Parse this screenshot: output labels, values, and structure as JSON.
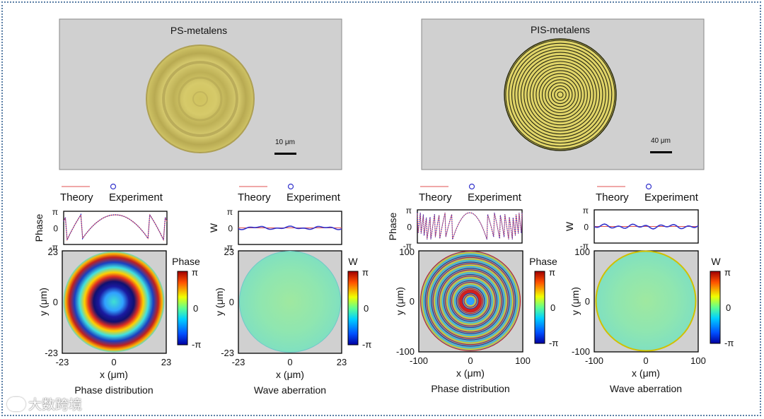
{
  "micrographs": [
    {
      "title": "PS-metalens",
      "scale_label": "10 μm"
    },
    {
      "title": "PIS-metalens",
      "scale_label": "40 μm"
    }
  ],
  "legend": {
    "theory": "Theory",
    "experiment": "Experiment"
  },
  "colors": {
    "theory": "#e05050",
    "experiment": "#3333cc",
    "background": "#d0d0d0",
    "lens": "#d8cc66"
  },
  "panels": [
    {
      "line_ylabel": "Phase",
      "line_ticks": [
        "π",
        "0",
        "-π"
      ],
      "map_ticks_y": [
        "23",
        "0",
        "-23"
      ],
      "map_ticks_x": [
        "-23",
        "0",
        "23"
      ],
      "colorbar_title": "Phase",
      "colorbar_ticks": [
        "π",
        "0",
        "-π"
      ],
      "x_label": "x (μm)",
      "y_label": "y (μm)",
      "caption": "Phase distribution"
    },
    {
      "line_ylabel": "W",
      "line_ticks": [
        "π",
        "0",
        "-π"
      ],
      "map_ticks_y": [
        "23",
        "0",
        "-23"
      ],
      "map_ticks_x": [
        "-23",
        "0",
        "23"
      ],
      "colorbar_title": "W",
      "colorbar_ticks": [
        "π",
        "0",
        "-π"
      ],
      "x_label": "x (μm)",
      "y_label": "y (μm)",
      "caption": "Wave aberration"
    },
    {
      "line_ylabel": "Phase",
      "line_ticks": [
        "π",
        "0",
        "-π"
      ],
      "map_ticks_y": [
        "100",
        "0",
        "-100"
      ],
      "map_ticks_x": [
        "-100",
        "0",
        "100"
      ],
      "colorbar_title": "Phase",
      "colorbar_ticks": [
        "π",
        "0",
        "-π"
      ],
      "x_label": "x (μm)",
      "y_label": "y (μm)",
      "caption": "Phase distribution"
    },
    {
      "line_ylabel": "W",
      "line_ticks": [
        "π",
        "0",
        "-π"
      ],
      "map_ticks_y": [
        "100",
        "0",
        "-100"
      ],
      "map_ticks_x": [
        "-100",
        "0",
        "100"
      ],
      "colorbar_title": "W",
      "colorbar_ticks": [
        "π",
        "0",
        "-π"
      ],
      "x_label": "x (μm)",
      "y_label": "y (μm)",
      "caption": "Wave aberration"
    }
  ],
  "watermark": "大数跨境"
}
